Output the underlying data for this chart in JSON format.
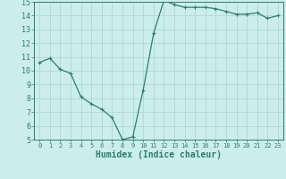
{
  "x": [
    0,
    1,
    2,
    3,
    4,
    5,
    6,
    7,
    8,
    9,
    10,
    11,
    12,
    13,
    14,
    15,
    16,
    17,
    18,
    19,
    20,
    21,
    22,
    23
  ],
  "y": [
    10.6,
    10.9,
    10.1,
    9.8,
    8.1,
    7.6,
    7.2,
    6.6,
    5.0,
    5.2,
    8.6,
    12.7,
    15.1,
    14.8,
    14.6,
    14.6,
    14.6,
    14.5,
    14.3,
    14.1,
    14.1,
    14.2,
    13.8,
    14.0
  ],
  "xlabel": "Humidex (Indice chaleur)",
  "ylim": [
    5,
    15
  ],
  "xlim": [
    -0.5,
    23.5
  ],
  "yticks": [
    5,
    6,
    7,
    8,
    9,
    10,
    11,
    12,
    13,
    14,
    15
  ],
  "xticks": [
    0,
    1,
    2,
    3,
    4,
    5,
    6,
    7,
    8,
    9,
    10,
    11,
    12,
    13,
    14,
    15,
    16,
    17,
    18,
    19,
    20,
    21,
    22,
    23
  ],
  "line_color": "#2e7d6e",
  "marker": "+",
  "bg_color": "#cceee8",
  "grid_color": "#b0d8d2",
  "tick_label_color": "#2e7d6e",
  "xlabel_color": "#2e7d6e",
  "xlabel_fontsize": 7,
  "tick_fontsize_x": 5,
  "tick_fontsize_y": 6,
  "markersize": 3,
  "linewidth": 0.9
}
